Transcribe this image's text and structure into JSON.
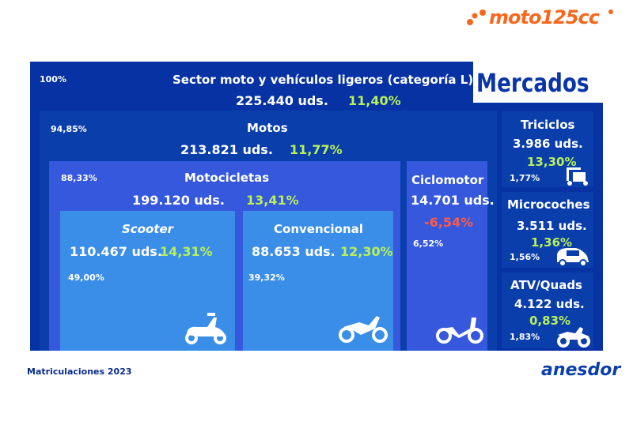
{
  "header": {
    "logo": "moto125cc",
    "title": "Mercados"
  },
  "sector": {
    "pct": "100%",
    "title": "Sector moto y vehículos ligeros (categoría L)",
    "units": "225.440 uds.",
    "growth": "11,40%"
  },
  "motos": {
    "pct": "94,85%",
    "title": "Motos",
    "units": "213.821 uds.",
    "growth": "11,77%"
  },
  "motocicletas": {
    "pct": "88,33%",
    "title": "Motocicletas",
    "units": "199.120 uds.",
    "growth": "13,41%"
  },
  "scooter": {
    "pct": "49,00%",
    "title": "Scooter",
    "units": "110.467 uds.",
    "growth": "14,31%"
  },
  "convencional": {
    "pct": "39,32%",
    "title": "Convencional",
    "units": "88.653 uds.",
    "growth": "12,30%"
  },
  "ciclomotor": {
    "pct": "6,52%",
    "title": "Ciclomotor",
    "units": "14.701 uds.",
    "growth": "-6,54%"
  },
  "triciclos": {
    "pct": "1,77%",
    "title": "Triciclos",
    "units": "3.986 uds.",
    "growth": "13,30%"
  },
  "microcoches": {
    "pct": "1,56%",
    "title": "Microcoches",
    "units": "3.511 uds.",
    "growth": "1,36%"
  },
  "atv": {
    "pct": "1,83%",
    "title": "ATV/Quads",
    "units": "4.122 uds.",
    "growth": "0,83%"
  },
  "footer": {
    "caption": "Matriculaciones 2023",
    "brand": "anesdor"
  },
  "colors": {
    "outer": "#0632a3",
    "motos": "#0a3eab",
    "motocicletas": "#3558dc",
    "segment": "#3a8ee8",
    "green": "#b8f05a",
    "red": "#ff5a4a"
  }
}
